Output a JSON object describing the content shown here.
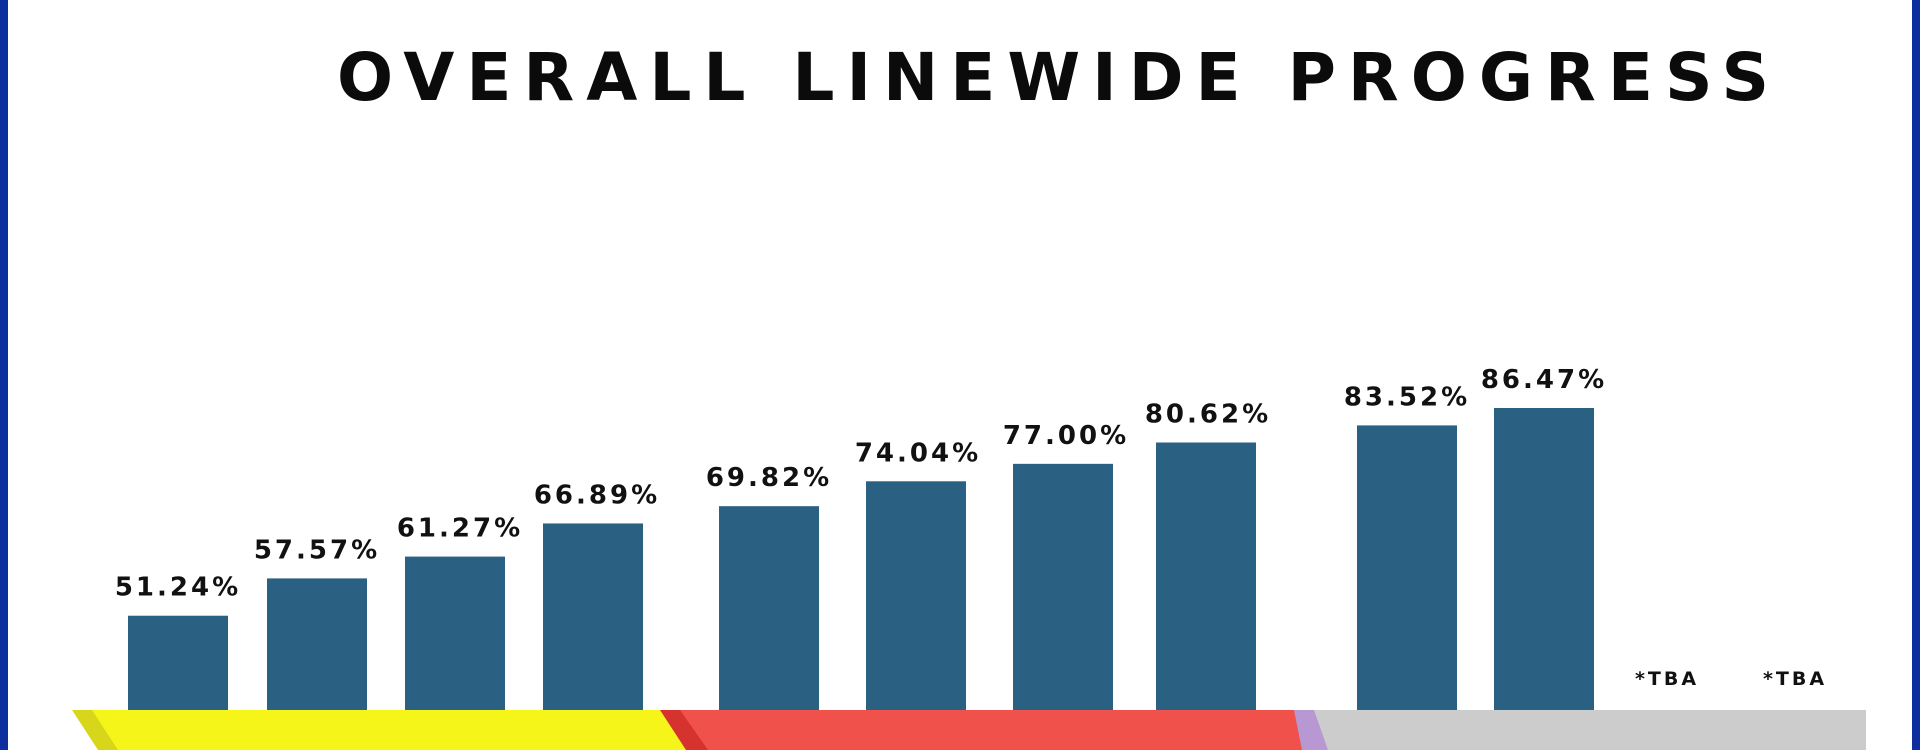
{
  "chart_data": {
    "type": "bar",
    "title": "OVERALL LINEWIDE PROGRESS",
    "xlabel": "",
    "ylabel": "",
    "ylim": [
      0,
      100
    ],
    "grid": false,
    "legend": "none",
    "colors": {
      "bar": "#2a6183",
      "frame": "#0d2e9e",
      "band_yellow": "#f5f51a",
      "band_yellow_edge": "#d8d61a",
      "band_red": "#f0514a",
      "band_red_edge": "#d6332f",
      "band_purple": "#b898d2",
      "band_gray": "#cccccc"
    },
    "categories": [
      "",
      "",
      "",
      "",
      "",
      "",
      "",
      "",
      "",
      "",
      "",
      ""
    ],
    "values": [
      51.24,
      57.57,
      61.27,
      66.89,
      69.82,
      74.04,
      77.0,
      80.62,
      83.52,
      86.47,
      null,
      null
    ],
    "value_labels": [
      "51.24%",
      "57.57%",
      "61.27%",
      "66.89%",
      "69.82%",
      "74.04%",
      "77.00%",
      "80.62%",
      "83.52%",
      "86.47%",
      "*TBA",
      "*TBA"
    ]
  }
}
